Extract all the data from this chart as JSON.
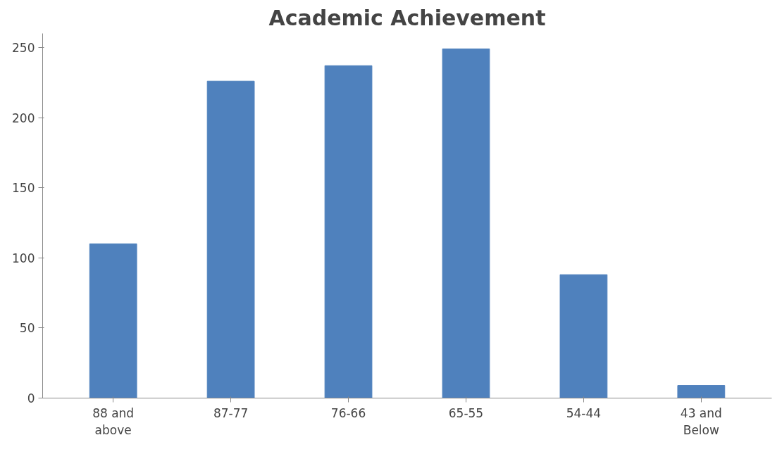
{
  "chart_data": {
    "type": "bar",
    "title": "Academic Achievement",
    "categories": [
      "88 and\nabove",
      "87-77",
      "76-66",
      "65-55",
      "54-44",
      "43 and\nBelow"
    ],
    "values": [
      110,
      226,
      237,
      249,
      88,
      9
    ],
    "color": "#4f81bd",
    "ylim": [
      0,
      260
    ],
    "yticks": [
      0,
      50,
      100,
      150,
      200,
      250
    ],
    "grid": false
  }
}
